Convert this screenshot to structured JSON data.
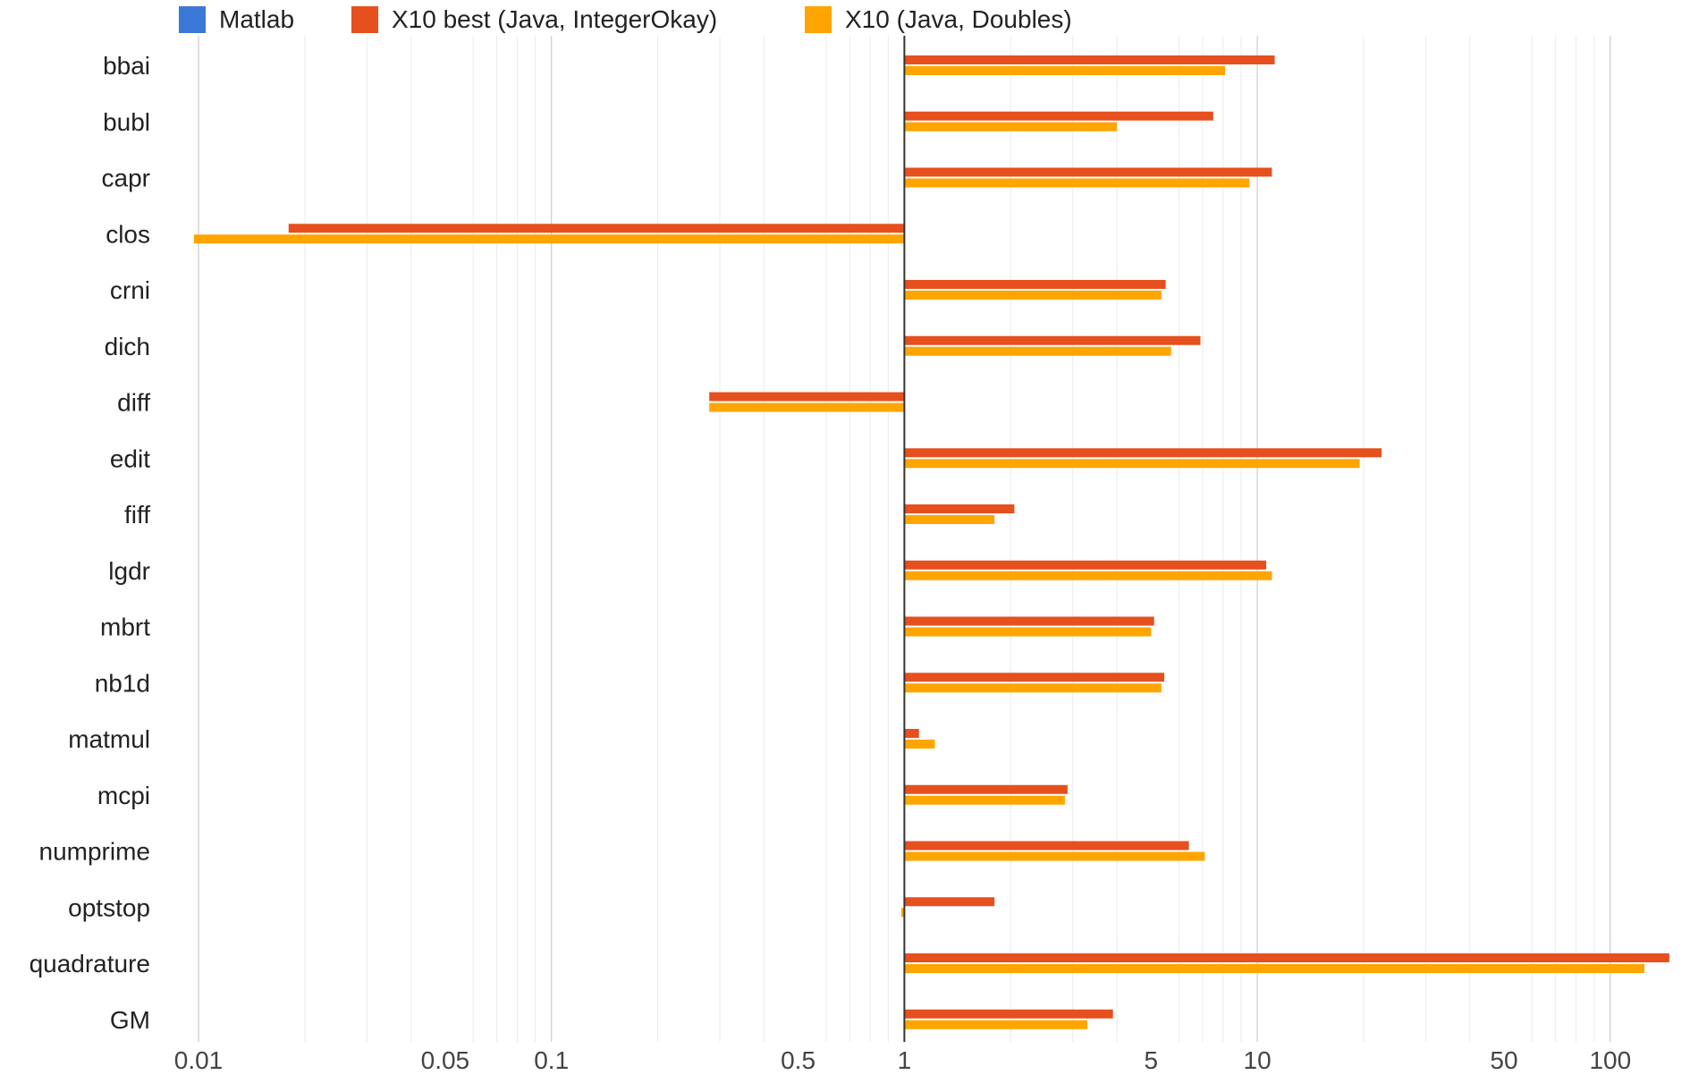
{
  "chart_data": {
    "type": "bar",
    "orientation": "horizontal",
    "x_scale": "log",
    "baseline": 1,
    "xlim": [
      0.01,
      150
    ],
    "grid": true,
    "legend_position": "top",
    "categories": [
      "bbai",
      "bubl",
      "capr",
      "clos",
      "crni",
      "dich",
      "diff",
      "edit",
      "fiff",
      "lgdr",
      "mbrt",
      "nb1d",
      "matmul",
      "mcpi",
      "numprime",
      "optstop",
      "quadrature",
      "GM"
    ],
    "series": [
      {
        "name": "Matlab",
        "color": "#3C78D8",
        "values": [
          null,
          null,
          null,
          null,
          null,
          null,
          null,
          null,
          null,
          null,
          null,
          null,
          null,
          null,
          null,
          null,
          null,
          null
        ]
      },
      {
        "name": "X10 best (Java, IntegerOkay)",
        "color": "#E6501E",
        "values": [
          11.2,
          7.5,
          11.0,
          0.018,
          5.5,
          6.9,
          0.28,
          22.5,
          2.05,
          10.6,
          5.1,
          5.45,
          1.1,
          2.9,
          6.4,
          1.8,
          147,
          3.9
        ]
      },
      {
        "name": "X10 (Java, Doubles)",
        "color": "#FFA500",
        "values": [
          8.1,
          4.0,
          9.5,
          0.0097,
          5.35,
          5.7,
          0.28,
          19.5,
          1.8,
          11.0,
          5.0,
          5.35,
          1.22,
          2.85,
          7.1,
          0.98,
          125,
          3.3
        ]
      }
    ],
    "x_ticks": [
      {
        "value": 0.01,
        "label": "0.01"
      },
      {
        "value": 0.05,
        "label": "0.05"
      },
      {
        "value": 0.1,
        "label": "0.1"
      },
      {
        "value": 0.5,
        "label": "0.5"
      },
      {
        "value": 1,
        "label": "1"
      },
      {
        "value": 5,
        "label": "5"
      },
      {
        "value": 10,
        "label": "10"
      },
      {
        "value": 50,
        "label": "50"
      },
      {
        "value": 100,
        "label": "100"
      }
    ],
    "minor_grid": [
      0.02,
      0.03,
      0.04,
      0.06,
      0.07,
      0.08,
      0.09,
      0.2,
      0.3,
      0.4,
      0.6,
      0.7,
      0.8,
      0.9,
      2,
      3,
      4,
      6,
      7,
      8,
      9,
      20,
      30,
      40,
      60,
      70,
      80,
      90
    ],
    "major_grid": [
      0.01,
      0.1,
      10,
      100
    ]
  }
}
